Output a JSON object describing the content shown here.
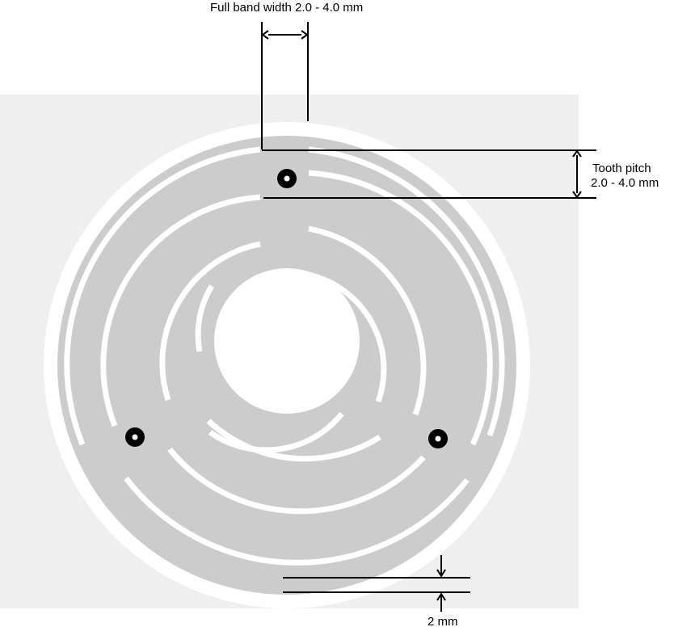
{
  "annotations": {
    "band_width": "Full band width 2.0 - 4.0 mm",
    "tooth_pitch_title": "Tooth pitch",
    "tooth_pitch_range": "2.0 - 4.0 mm",
    "margin": "2 mm"
  },
  "colors": {
    "backdrop": "#efefef",
    "body": "#cccccc",
    "cutout": "#ffffff",
    "line": "#000000"
  }
}
